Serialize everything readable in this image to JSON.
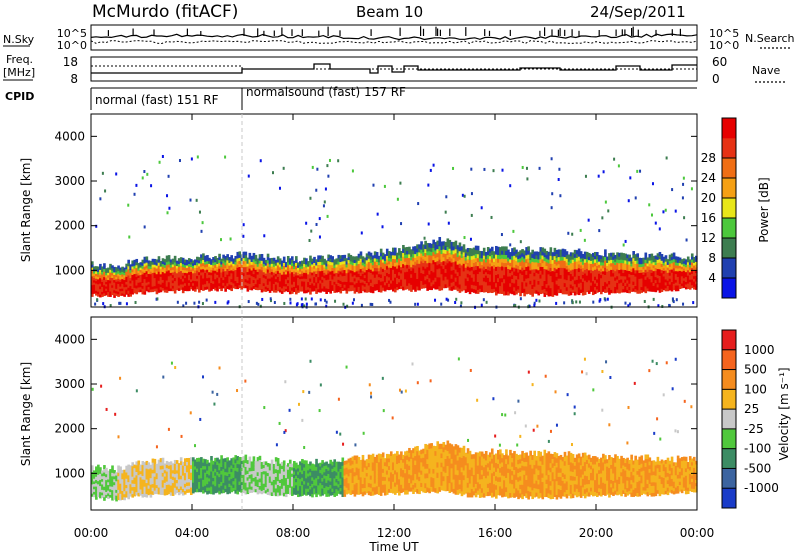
{
  "header": {
    "station": "McMurdo (fitACF)",
    "beam": "Beam 10",
    "date": "24/Sep/2011"
  },
  "noise_panel": {
    "left_label": "N.Sky",
    "right_label": "N.Search",
    "left_ticks": [
      "10^5",
      "10^0"
    ],
    "right_ticks": [
      "10^5",
      "10^0"
    ]
  },
  "freq_panel": {
    "left_label_line1": "Freq.",
    "left_label_line2": "[MHz]",
    "right_label": "Nave",
    "left_ticks": [
      "18",
      "8"
    ],
    "right_ticks": [
      "60",
      "0"
    ]
  },
  "cpid_panel": {
    "label": "CPID",
    "modes": [
      "normal (fast) 151 RF",
      "normalsound (fast) 157 RF"
    ]
  },
  "time_axis": {
    "label": "Time UT",
    "ticks": [
      "00:00",
      "04:00",
      "08:00",
      "12:00",
      "16:00",
      "20:00",
      "00:00"
    ]
  },
  "range_axis": {
    "label": "Slant Range [km]",
    "ticks": [
      "1000",
      "2000",
      "3000",
      "4000"
    ]
  },
  "power_colorbar": {
    "label": "Power [dB]",
    "ticks": [
      "4",
      "8",
      "12",
      "16",
      "20",
      "24",
      "28"
    ],
    "colors": [
      "#0a14e6",
      "#2040b0",
      "#3d7d50",
      "#4cc83c",
      "#e8e619",
      "#f5a014",
      "#f06e14",
      "#e63214",
      "#e60000"
    ]
  },
  "velocity_colorbar": {
    "label": "Velocity [m s⁻¹]",
    "ticks": [
      "1000",
      "500",
      "100",
      "25",
      "-25",
      "-100",
      "-500",
      "-1000"
    ],
    "colors": [
      "#1a3cc8",
      "#3c64a0",
      "#3c8c64",
      "#50c83c",
      "#c8c8c8",
      "#f5b41e",
      "#f58c1e",
      "#f5641e",
      "#e61e1e"
    ]
  },
  "chart_data": [
    {
      "type": "heatmap",
      "title": "Power",
      "xlabel": "Time UT",
      "ylabel": "Slant Range [km]",
      "xlim": [
        "00:00",
        "24:00"
      ],
      "ylim": [
        180,
        4500
      ],
      "colorbar": {
        "label": "Power [dB]",
        "range": [
          0,
          32
        ]
      },
      "band": [
        {
          "t": 0.0,
          "low": 450,
          "high": 1150
        },
        {
          "t": 1.0,
          "low": 420,
          "high": 1100
        },
        {
          "t": 2.0,
          "low": 500,
          "high": 1250
        },
        {
          "t": 4.0,
          "low": 550,
          "high": 1300
        },
        {
          "t": 6.0,
          "low": 580,
          "high": 1350
        },
        {
          "t": 8.0,
          "low": 500,
          "high": 1250
        },
        {
          "t": 10.0,
          "low": 520,
          "high": 1300
        },
        {
          "t": 12.0,
          "low": 550,
          "high": 1450
        },
        {
          "t": 14.0,
          "low": 600,
          "high": 1700
        },
        {
          "t": 15.0,
          "low": 500,
          "high": 1500
        },
        {
          "t": 18.0,
          "low": 450,
          "high": 1450
        },
        {
          "t": 20.0,
          "low": 500,
          "high": 1400
        },
        {
          "t": 22.0,
          "low": 520,
          "high": 1350
        },
        {
          "t": 24.0,
          "low": 600,
          "high": 1300
        }
      ]
    },
    {
      "type": "heatmap",
      "title": "Velocity",
      "xlabel": "Time UT",
      "ylabel": "Slant Range [km]",
      "xlim": [
        "00:00",
        "24:00"
      ],
      "ylim": [
        180,
        4500
      ],
      "colorbar": {
        "label": "Velocity [m s-1]",
        "range": [
          -1000,
          1000
        ]
      },
      "band": [
        {
          "t": 0.0,
          "low": 450,
          "high": 1150
        },
        {
          "t": 1.0,
          "low": 420,
          "high": 1100
        },
        {
          "t": 2.0,
          "low": 500,
          "high": 1250
        },
        {
          "t": 4.0,
          "low": 550,
          "high": 1300
        },
        {
          "t": 6.0,
          "low": 580,
          "high": 1350
        },
        {
          "t": 8.0,
          "low": 500,
          "high": 1250
        },
        {
          "t": 10.0,
          "low": 520,
          "high": 1300
        },
        {
          "t": 12.0,
          "low": 550,
          "high": 1450
        },
        {
          "t": 14.0,
          "low": 600,
          "high": 1700
        },
        {
          "t": 15.0,
          "low": 500,
          "high": 1500
        },
        {
          "t": 18.0,
          "low": 450,
          "high": 1450
        },
        {
          "t": 20.0,
          "low": 500,
          "high": 1400
        },
        {
          "t": 22.0,
          "low": 520,
          "high": 1350
        },
        {
          "t": 24.0,
          "low": 600,
          "high": 1300
        }
      ]
    }
  ]
}
